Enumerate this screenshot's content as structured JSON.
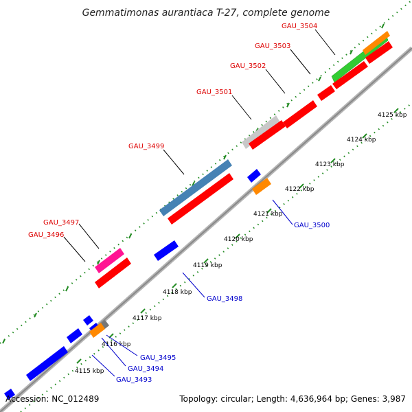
{
  "title": "Gemmatimonas aurantiaca T-27, complete genome",
  "footer": {
    "accession": "Accession: NC_012489",
    "summary": "Topology: circular; Length: 4,636,964 bp; Genes: 3,987"
  },
  "colors": {
    "forward_label": "#dd0000",
    "reverse_label": "#0000cc",
    "backbone": "#999999",
    "tick": "#228b22",
    "cds_red": "#ff0000",
    "cds_blue": "#0000ff",
    "cds_green": "#33cc33",
    "cds_orange": "#ff8800",
    "cds_gray": "#c8c8c8",
    "cds_dark_gray": "#777777",
    "cds_steelblue": "#4682b4",
    "cds_pink": "#ff1493"
  },
  "scale_ticks": [
    {
      "label": "4115 kbp"
    },
    {
      "label": "4116 kbp"
    },
    {
      "label": "4117 kbp"
    },
    {
      "label": "4118 kbp"
    },
    {
      "label": "4119 kbp"
    },
    {
      "label": "4120 kbp"
    },
    {
      "label": "4121 kbp"
    },
    {
      "label": "4122 kbp"
    },
    {
      "label": "4123 kbp"
    },
    {
      "label": "4124 kbp"
    },
    {
      "label": "4125 kbp"
    }
  ],
  "gene_labels": [
    {
      "text": "GAU_3504",
      "strand": "forward"
    },
    {
      "text": "GAU_3503",
      "strand": "forward"
    },
    {
      "text": "GAU_3502",
      "strand": "forward"
    },
    {
      "text": "GAU_3501",
      "strand": "forward"
    },
    {
      "text": "GAU_3499",
      "strand": "forward"
    },
    {
      "text": "GAU_3497",
      "strand": "forward"
    },
    {
      "text": "GAU_3496",
      "strand": "forward"
    },
    {
      "text": "GAU_3500",
      "strand": "reverse"
    },
    {
      "text": "GAU_3498",
      "strand": "reverse"
    },
    {
      "text": "GAU_3495",
      "strand": "reverse"
    },
    {
      "text": "GAU_3494",
      "strand": "reverse"
    },
    {
      "text": "GAU_3493",
      "strand": "reverse"
    }
  ]
}
